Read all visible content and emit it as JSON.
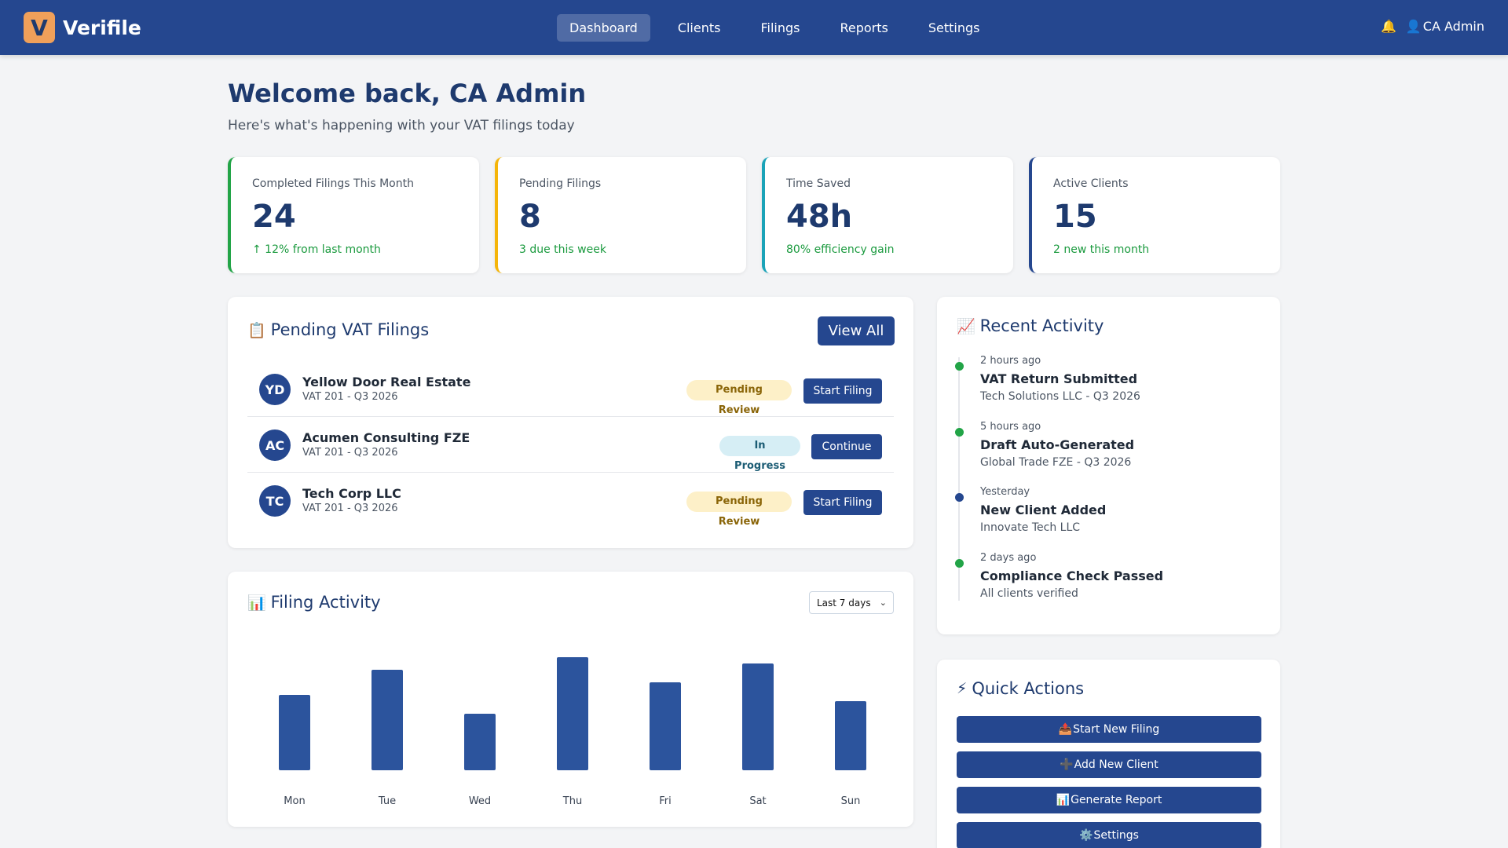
{
  "app": {
    "logo_letter": "V",
    "name": "Verifile"
  },
  "nav": {
    "items": [
      {
        "label": "Dashboard",
        "active": true
      },
      {
        "label": "Clients",
        "active": false
      },
      {
        "label": "Filings",
        "active": false
      },
      {
        "label": "Reports",
        "active": false
      },
      {
        "label": "Settings",
        "active": false
      }
    ]
  },
  "header": {
    "bell_icon": "🔔",
    "user_icon": "👤",
    "user_name": "CA Admin"
  },
  "welcome": {
    "title": "Welcome back, CA Admin",
    "subtitle": "Here's what's happening with your VAT filings today"
  },
  "stats": [
    {
      "label": "Completed Filings This Month",
      "value": "24",
      "note": "↑ 12% from last month",
      "accent": "#22a447"
    },
    {
      "label": "Pending Filings",
      "value": "8",
      "note": "3 due this week",
      "accent": "#f5b50a"
    },
    {
      "label": "Time Saved",
      "value": "48h",
      "note": "80% efficiency gain",
      "accent": "#1aa3b8"
    },
    {
      "label": "Active Clients",
      "value": "15",
      "note": "2 new this month",
      "accent": "#25478f"
    }
  ],
  "pending": {
    "icon": "📋",
    "title": "Pending VAT Filings",
    "view_all": "View All",
    "rows": [
      {
        "initials": "YD",
        "name": "Yellow Door Real Estate",
        "sub": "VAT 201 - Q3 2026",
        "status": "Pending Review",
        "action": "Start Filing"
      },
      {
        "initials": "AC",
        "name": "Acumen Consulting FZE",
        "sub": "VAT 201 - Q3 2026",
        "status": "In Progress",
        "action": "Continue"
      },
      {
        "initials": "TC",
        "name": "Tech Corp LLC",
        "sub": "VAT 201 - Q3 2026",
        "status": "Pending Review",
        "action": "Start Filing"
      }
    ]
  },
  "activity_chart": {
    "icon": "📊",
    "title": "Filing Activity",
    "range": "Last 7 days",
    "chevron": "⌄"
  },
  "chart_data": {
    "type": "bar",
    "categories": [
      "Mon",
      "Tue",
      "Wed",
      "Thu",
      "Fri",
      "Sat",
      "Sun"
    ],
    "values": [
      12,
      16,
      9,
      18,
      14,
      17,
      11
    ],
    "ylim": [
      0,
      18
    ],
    "color": "#2c549d",
    "grid": false,
    "title": "",
    "xlabel": "",
    "ylabel": ""
  },
  "recent": {
    "icon": "📈",
    "title": "Recent Activity",
    "items": [
      {
        "time": "2 hours ago",
        "title": "VAT Return Submitted",
        "desc": "Tech Solutions LLC - Q3 2026",
        "dot_color": "#22a447"
      },
      {
        "time": "5 hours ago",
        "title": "Draft Auto-Generated",
        "desc": "Global Trade FZE - Q3 2026",
        "dot_color": "#22a447"
      },
      {
        "time": "Yesterday",
        "title": "New Client Added",
        "desc": "Innovate Tech LLC",
        "dot_color": "#25478f"
      },
      {
        "time": "2 days ago",
        "title": "Compliance Check Passed",
        "desc": "All clients verified",
        "dot_color": "#22a447"
      }
    ]
  },
  "quick_actions": {
    "icon": "⚡",
    "title": "Quick Actions",
    "items": [
      {
        "icon": "📤",
        "label": "Start New Filing"
      },
      {
        "icon": "➕",
        "label": "Add New Client"
      },
      {
        "icon": "📊",
        "label": "Generate Report"
      },
      {
        "icon": "⚙️",
        "label": "Settings"
      }
    ]
  }
}
